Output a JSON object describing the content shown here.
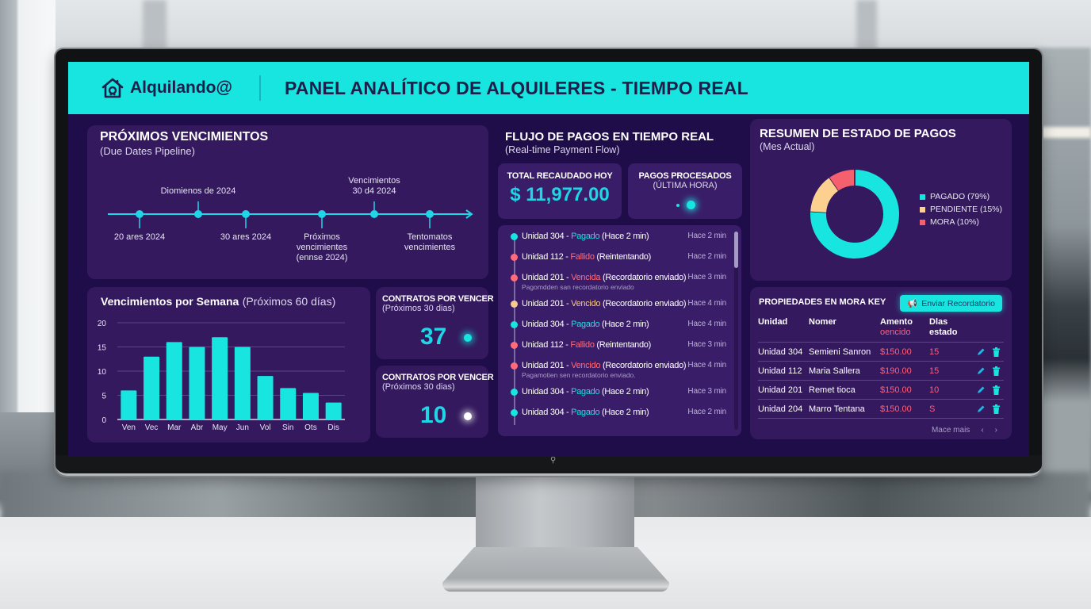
{
  "app": {
    "brand": "Alquilando@",
    "title": "PANEL ANALÍTICO DE ALQUILERES - TIEMPO REAL",
    "accent": "#18e4e0",
    "background": "#1f0d4a"
  },
  "due_dates": {
    "title": "PRÓXIMOS VENCIMIENTOS",
    "subtitle": "(Due Dates Pipeline)",
    "milestones": [
      {
        "label_lines": [
          "20 ares 2024"
        ],
        "position": "below"
      },
      {
        "label_lines": [
          "Diomienos de 2024"
        ],
        "position": "above"
      },
      {
        "label_lines": [
          "30 ares 2024"
        ],
        "position": "below"
      },
      {
        "label_lines": [
          "Próximos",
          "vencimientes",
          "(ennse 2024)"
        ],
        "position": "below"
      },
      {
        "label_lines": [
          "Vencimientos",
          "30 d4 2024"
        ],
        "position": "above"
      },
      {
        "label_lines": [
          "Tentomatos",
          "vencimientes"
        ],
        "position": "below"
      }
    ]
  },
  "weekly": {
    "title": "Vencimientos por Semana",
    "title_suffix": "(Próximos 60 días)"
  },
  "chart_data": {
    "type": "bar",
    "title": "Vencimientos por Semana (Próximos 60 días)",
    "categories": [
      "Ven",
      "Vec",
      "Mar",
      "Abr",
      "May",
      "Jun",
      "Vol",
      "Sin",
      "Ots",
      "Dis"
    ],
    "values": [
      6,
      13,
      16,
      15,
      17,
      15,
      9,
      6.5,
      5.5,
      3.5
    ],
    "xlabel": "",
    "ylabel": "",
    "ylim": [
      0,
      20
    ],
    "yticks": [
      0,
      5,
      10,
      15,
      20
    ],
    "grid": true,
    "color": "#18e4e0"
  },
  "contracts": [
    {
      "title": "CONTRATOS POR VENCER",
      "subtitle": "(Próximos 30 dias)",
      "value": "37",
      "dot_color": "#18e4e0"
    },
    {
      "title": "CONTRATOS POR VENCER",
      "subtitle": "(Próximos 30 dias)",
      "value": "10",
      "dot_color": "#ffffff"
    }
  ],
  "payment_flow": {
    "title": "FLUJO DE PAGOS EN TIEMPO REAL",
    "subtitle": "(Real-time Payment Flow)",
    "total_label": "TOTAL RECAUDADO HOY",
    "total_value": "$ 11,977.00",
    "processed_label_1": "PAGOS PROCESADOS",
    "processed_label_2": "(ÚLTIMA HORA)",
    "feed": [
      {
        "unit": "Unidad 304 - ",
        "status": "Pagado",
        "detail": " (Hace 2 min)",
        "time": "Hace 2 min",
        "kind": "paid",
        "note": ""
      },
      {
        "unit": "Unidad 112 - ",
        "status": "Fallido",
        "detail": " (Reintentando)",
        "time": "Hace 2 min",
        "kind": "failed",
        "note": ""
      },
      {
        "unit": "Unidad 201 - ",
        "status": "Vencida",
        "detail": " (Recordatorio enviado)",
        "time": "Hace 3 min",
        "kind": "failed",
        "note": "Pagomdden san recordatorio enviado"
      },
      {
        "unit": "Unidad 201 - ",
        "status": "Vencido",
        "detail": " (Recordatorio enviado)",
        "time": "Hace 4 min",
        "kind": "pending",
        "note": ""
      },
      {
        "unit": "Unidad 304 - ",
        "status": "Pagado",
        "detail": " (Hace 2 min)",
        "time": "Hace 4 min",
        "kind": "paid",
        "note": ""
      },
      {
        "unit": "Unidad 112 - ",
        "status": "Fallido",
        "detail": " (Reintentando)",
        "time": "Hace 3 min",
        "kind": "failed",
        "note": ""
      },
      {
        "unit": "Unidad 201 - ",
        "status": "Vencido",
        "detail": " (Recordatorio enviado)",
        "time": "Hace 4 min",
        "kind": "failed",
        "note": "Pagamotien sen recordatorio enviado."
      },
      {
        "unit": "Unidad 304 - ",
        "status": "Pagado",
        "detail": " (Hace 2 min)",
        "time": "Hace 3 min",
        "kind": "paid",
        "note": ""
      },
      {
        "unit": "Unidad 304 - ",
        "status": "Pagado",
        "detail": " (Hace 2 min)",
        "time": "Hace 2 min",
        "kind": "paid",
        "note": ""
      }
    ],
    "colors": {
      "paid": "#18e4e0",
      "failed": "#ff6b7a",
      "pending": "#f6c98e"
    }
  },
  "status_summary": {
    "title": "RESUMEN DE ESTADO DE PAGOS",
    "subtitle": "(Mes Actual)",
    "slices": [
      {
        "label": "PAGADO (79%)",
        "value": 79,
        "color": "#18e4e0"
      },
      {
        "label": "PENDIENTE (15%)",
        "value": 15,
        "color": "#fcd08f"
      },
      {
        "label": "MORA (10%)",
        "value": 10,
        "color": "#f4606e"
      }
    ]
  },
  "arrears": {
    "title": "PROPIEDADES EN MORA KEY",
    "button_label": "Enviar Recordatorio",
    "columns": [
      "Unidad",
      "Nomer",
      "Amento",
      "oencido",
      "Dlas",
      "estado"
    ],
    "rows": [
      {
        "unit": "Unidad 304",
        "name": "Semieni Sanron",
        "amount": "$150.00",
        "days": "15"
      },
      {
        "unit": "Unidad 112",
        "name": "Maria Sallera",
        "amount": "$190.00",
        "days": "15"
      },
      {
        "unit": "Unidad 201",
        "name": "Remet tioca",
        "amount": "$150.00",
        "days": "10"
      },
      {
        "unit": "Unidad 204",
        "name": "Marro Tentana",
        "amount": "$150.00",
        "days": "S"
      }
    ],
    "pager_label": "Mace mais",
    "prev": "‹",
    "next": "›"
  }
}
